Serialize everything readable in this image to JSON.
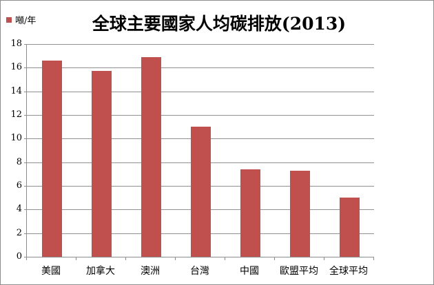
{
  "chart_data": {
    "type": "bar",
    "title": "全球主要國家人均碳排放(2013)",
    "legend_label": "噸/年",
    "legend_position": "top-left",
    "categories": [
      "美國",
      "加拿大",
      "澳洲",
      "台灣",
      "中國",
      "歐盟平均",
      "全球平均"
    ],
    "values": [
      16.6,
      15.7,
      16.9,
      11.0,
      7.4,
      7.3,
      5.0
    ],
    "xlabel": "",
    "ylabel": "",
    "ylim": [
      0,
      18
    ],
    "ytick_step": 2,
    "yticks": [
      0,
      2,
      4,
      6,
      8,
      10,
      12,
      14,
      16,
      18
    ],
    "grid": true,
    "bar_color": "#C0504D",
    "gridline_color": "#909090",
    "axis_color": "#8C8C8C",
    "border_color": "#8C8C8C",
    "text_color": "#000000"
  }
}
